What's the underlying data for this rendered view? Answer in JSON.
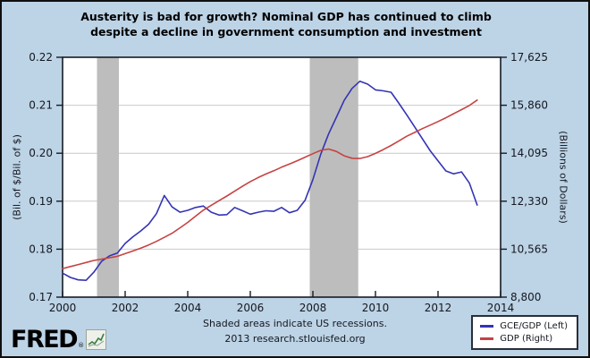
{
  "footer": {
    "note": "Shaded areas indicate US recessions.",
    "source": "2013 research.stlouisfed.org"
  },
  "logo": {
    "text": "FRED",
    "reg": "®"
  },
  "chart_data": {
    "type": "line",
    "title_lines": [
      "Austerity is bad for growth? Nominal GDP has continued to climb",
      "despite a decline in government consumption and investment"
    ],
    "grid": "horizontal",
    "legend_position": "bottom-right",
    "background_color": "#bdd3e6",
    "plot_background": "#ffffff",
    "recession_color": "#bdbdbd",
    "recession_note": "Shaded areas indicate US recessions.",
    "x_axis": {
      "range": [
        2000,
        2014
      ],
      "ticks": [
        2000,
        2002,
        2004,
        2006,
        2008,
        2010,
        2012,
        2014
      ]
    },
    "left_axis": {
      "label": "(Bil. of $/Bil. of $)",
      "range": [
        0.17,
        0.22
      ],
      "ticks": [
        0.17,
        0.18,
        0.19,
        0.2,
        0.21,
        0.22
      ],
      "tick_labels": [
        "0.17",
        "0.18",
        "0.19",
        "0.20",
        "0.21",
        "0.22"
      ]
    },
    "right_axis": {
      "label": "(Billions of Dollars)",
      "range": [
        8800,
        17625
      ],
      "ticks": [
        8800,
        10565,
        12330,
        14095,
        15860,
        17625
      ],
      "tick_labels": [
        "8,800",
        "10,565",
        "12,330",
        "14,095",
        "15,860",
        "17,625"
      ]
    },
    "recessions": [
      [
        2001.1,
        2001.8
      ],
      [
        2007.9,
        2009.45
      ]
    ],
    "x": [
      2000,
      2000.25,
      2000.5,
      2000.75,
      2001,
      2001.25,
      2001.5,
      2001.75,
      2002,
      2002.25,
      2002.5,
      2002.75,
      2003,
      2003.25,
      2003.5,
      2003.75,
      2004,
      2004.25,
      2004.5,
      2004.75,
      2005,
      2005.25,
      2005.5,
      2005.75,
      2006,
      2006.25,
      2006.5,
      2006.75,
      2007,
      2007.25,
      2007.5,
      2007.75,
      2008,
      2008.25,
      2008.5,
      2008.75,
      2009,
      2009.25,
      2009.5,
      2009.75,
      2010,
      2010.25,
      2010.5,
      2010.75,
      2011,
      2011.25,
      2011.5,
      2011.75,
      2012,
      2012.25,
      2012.5,
      2012.75,
      2013,
      2013.25
    ],
    "series": [
      {
        "name": "GCE/GDP (Left)",
        "axis": "left",
        "color": "#3434b4",
        "values": [
          0.175,
          0.1741,
          0.1736,
          0.1735,
          0.1752,
          0.1775,
          0.1786,
          0.1792,
          0.1812,
          0.1826,
          0.1838,
          0.1852,
          0.1874,
          0.1912,
          0.1888,
          0.1877,
          0.1881,
          0.1887,
          0.189,
          0.1877,
          0.1871,
          0.1872,
          0.1887,
          0.188,
          0.1873,
          0.1877,
          0.188,
          0.1879,
          0.1887,
          0.1876,
          0.1881,
          0.1902,
          0.1945,
          0.1998,
          0.204,
          0.2075,
          0.211,
          0.2135,
          0.215,
          0.2144,
          0.2132,
          0.213,
          0.2127,
          0.2104,
          0.208,
          0.2055,
          0.203,
          0.2005,
          0.1984,
          0.1963,
          0.1957,
          0.1961,
          0.1938,
          0.1892
        ]
      },
      {
        "name": "GDP (Right)",
        "axis": "right",
        "color": "#c64343",
        "values": [
          9850,
          9925,
          10000,
          10075,
          10150,
          10200,
          10250,
          10300,
          10400,
          10500,
          10600,
          10720,
          10850,
          11000,
          11150,
          11350,
          11550,
          11780,
          12000,
          12180,
          12350,
          12520,
          12700,
          12880,
          13050,
          13200,
          13330,
          13450,
          13580,
          13700,
          13820,
          13950,
          14080,
          14200,
          14250,
          14160,
          14000,
          13910,
          13900,
          13970,
          14090,
          14230,
          14380,
          14550,
          14720,
          14860,
          15000,
          15130,
          15260,
          15400,
          15550,
          15700,
          15850,
          16050
        ]
      }
    ]
  }
}
